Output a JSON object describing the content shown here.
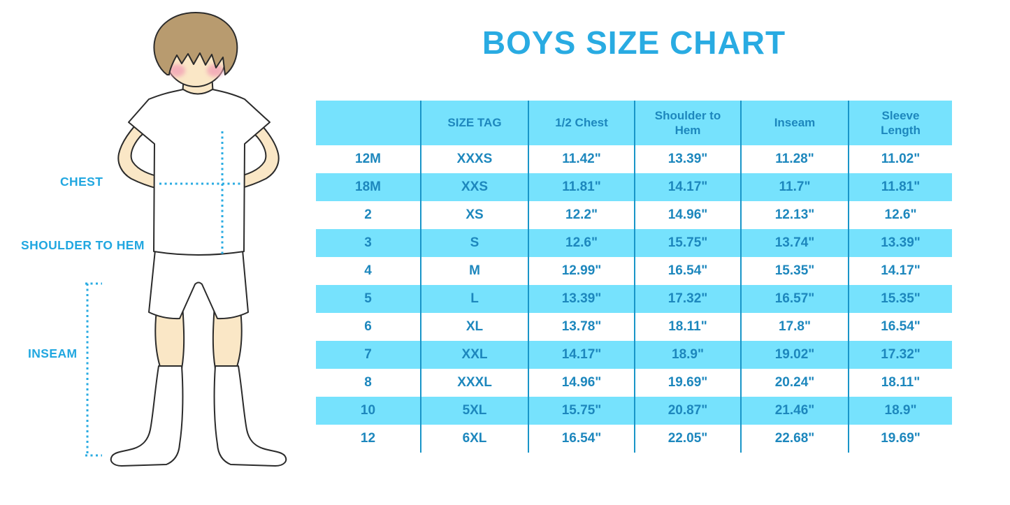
{
  "title": "BOYS SIZE CHART",
  "measurement_labels": {
    "chest": "CHEST",
    "shoulder_to_hem": "SHOULDER TO HEM",
    "inseam": "INSEAM"
  },
  "colors": {
    "accent_cyan": "#29abe2",
    "label_cyan": "#21a7e0",
    "table_text": "#1d87bd",
    "band_blue": "#76e2fd",
    "separator": "#1995c8",
    "skin": "#fae7c6",
    "hair": "#b89b6f",
    "cheek": "#f2a3b6",
    "outline": "#2b2b2b"
  },
  "chart_data": {
    "type": "table",
    "title": "BOYS SIZE CHART",
    "columns": [
      "",
      "SIZE TAG",
      "1/2 Chest",
      "Shoulder to Hem",
      "Inseam",
      "Sleeve Length"
    ],
    "rows": [
      [
        "12M",
        "XXXS",
        "11.42\"",
        "13.39\"",
        "11.28\"",
        "11.02\""
      ],
      [
        "18M",
        "XXS",
        "11.81\"",
        "14.17\"",
        "11.7\"",
        "11.81\""
      ],
      [
        "2",
        "XS",
        "12.2\"",
        "14.96\"",
        "12.13\"",
        "12.6\""
      ],
      [
        "3",
        "S",
        "12.6\"",
        "15.75\"",
        "13.74\"",
        "13.39\""
      ],
      [
        "4",
        "M",
        "12.99\"",
        "16.54\"",
        "15.35\"",
        "14.17\""
      ],
      [
        "5",
        "L",
        "13.39\"",
        "17.32\"",
        "16.57\"",
        "15.35\""
      ],
      [
        "6",
        "XL",
        "13.78\"",
        "18.11\"",
        "17.8\"",
        "16.54\""
      ],
      [
        "7",
        "XXL",
        "14.17\"",
        "18.9\"",
        "19.02\"",
        "17.32\""
      ],
      [
        "8",
        "XXXL",
        "14.96\"",
        "19.69\"",
        "20.24\"",
        "18.11\""
      ],
      [
        "10",
        "5XL",
        "15.75\"",
        "20.87\"",
        "21.46\"",
        "18.9\""
      ],
      [
        "12",
        "6XL",
        "16.54\"",
        "22.05\"",
        "22.68\"",
        "19.69\""
      ]
    ],
    "row_striping": [
      "white",
      "blue",
      "white",
      "blue",
      "white",
      "blue",
      "white",
      "blue",
      "white",
      "blue",
      "white"
    ]
  }
}
